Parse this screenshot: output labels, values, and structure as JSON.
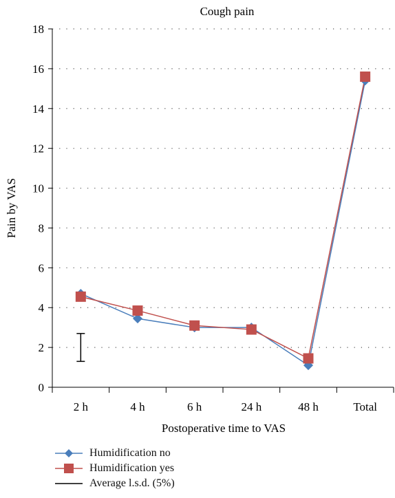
{
  "chart_data": {
    "type": "line",
    "title": "Cough pain",
    "xlabel": "Postoperative time to VAS",
    "ylabel": "Pain by VAS",
    "categories": [
      "2 h",
      "4 h",
      "6 h",
      "24 h",
      "48 h",
      "Total"
    ],
    "ylim": [
      0,
      18
    ],
    "yticks": [
      0,
      2,
      4,
      6,
      8,
      10,
      12,
      14,
      16,
      18
    ],
    "grid": "horizontal-dotted",
    "legend_position": "bottom-left",
    "series": [
      {
        "name": "Humidification no",
        "marker": "diamond",
        "color": "#4a7ebb",
        "values": [
          4.7,
          3.45,
          3.0,
          3.0,
          1.1,
          15.4
        ]
      },
      {
        "name": "Humidification yes",
        "marker": "square",
        "color": "#c0504d",
        "values": [
          4.55,
          3.85,
          3.1,
          2.9,
          1.45,
          15.6
        ]
      }
    ],
    "error_bar": {
      "name": "Average l.s.d. (5%)",
      "category_index": 0,
      "low": 1.3,
      "high": 2.7,
      "color": "#000000"
    }
  }
}
